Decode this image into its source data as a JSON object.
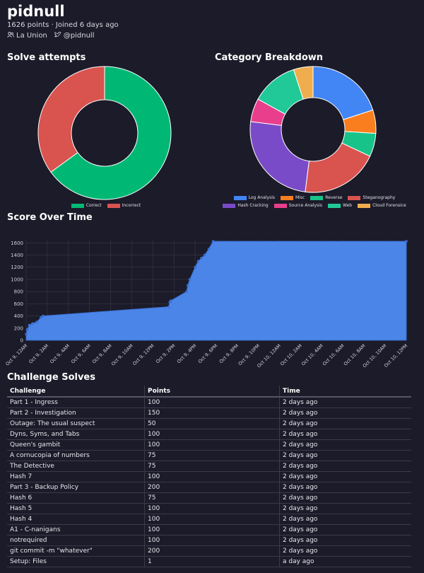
{
  "profile": {
    "username": "pidnull",
    "meta": "1626 points · Joined 6 days ago",
    "team": "La Union",
    "twitter": "@pidnull"
  },
  "sections": {
    "solve_attempts": "Solve attempts",
    "category_breakdown": "Category Breakdown",
    "score_over_time": "Score Over Time",
    "challenge_solves": "Challenge Solves"
  },
  "colors": {
    "correct": "#00b874",
    "incorrect": "#d9534f",
    "area": "#4b85e8"
  },
  "chart_data": [
    {
      "type": "pie",
      "labels": [
        "Correct",
        "Incorrect"
      ],
      "values": [
        65,
        35
      ],
      "colors": [
        "#00b874",
        "#d9534f"
      ],
      "legend": "bottom"
    },
    {
      "type": "pie",
      "labels": [
        "Log Analysis",
        "Misc",
        "Reverse",
        "Steganography",
        "Hash Cracking",
        "Source Analysis",
        "Web",
        "Cloud Forensice"
      ],
      "values": [
        20,
        6,
        6,
        20,
        25,
        6,
        12,
        5
      ],
      "colors": [
        "#4285f4",
        "#fa7e1e",
        "#17c389",
        "#d9534f",
        "#7a4bc8",
        "#e83e8c",
        "#20c997",
        "#f0ad4e"
      ],
      "legend": "bottom"
    },
    {
      "type": "area",
      "ylim": [
        0,
        1650
      ],
      "yticks": [
        0,
        200,
        400,
        600,
        800,
        1000,
        1200,
        1400,
        1600
      ],
      "xticks": [
        "Oct 9, 12AM",
        "Oct 9, 2AM",
        "Oct 9, 4AM",
        "Oct 9, 6AM",
        "Oct 9, 8AM",
        "Oct 9, 10AM",
        "Oct 9, 12PM",
        "Oct 9, 2PM",
        "Oct 9, 4PM",
        "Oct 9, 6PM",
        "Oct 9, 8PM",
        "Oct 9, 10PM",
        "Oct 10, 12AM",
        "Oct 10, 2AM",
        "Oct 10, 4AM",
        "Oct 10, 6AM",
        "Oct 10, 8AM",
        "Oct 10, 10AM",
        "Oct 10, 12PM"
      ],
      "x_hours": [
        0,
        0.1,
        0.3,
        0.6,
        1.0,
        1.4,
        1.6,
        13.5,
        13.6,
        13.7,
        15.2,
        15.3,
        15.5,
        16.0,
        16.3,
        16.6,
        16.9,
        17.3,
        17.7,
        36
      ],
      "y": [
        100,
        175,
        250,
        275,
        300,
        375,
        400,
        550,
        625,
        650,
        800,
        900,
        1000,
        1200,
        1300,
        1350,
        1400,
        1500,
        1626,
        1626
      ],
      "grid": true,
      "legend": "none"
    }
  ],
  "table": {
    "headers": [
      "Challenge",
      "Points",
      "Time"
    ],
    "rows": [
      [
        "Part 1 - Ingress",
        "100",
        "2 days ago"
      ],
      [
        "Part 2 - Investigation",
        "150",
        "2 days ago"
      ],
      [
        "Outage: The usual suspect",
        "50",
        "2 days ago"
      ],
      [
        "Dyns, Syms, and Tabs",
        "100",
        "2 days ago"
      ],
      [
        "Queen's gambit",
        "100",
        "2 days ago"
      ],
      [
        "A cornucopia of numbers",
        "75",
        "2 days ago"
      ],
      [
        "The Detective",
        "75",
        "2 days ago"
      ],
      [
        "Hash 7",
        "100",
        "2 days ago"
      ],
      [
        "Part 3 - Backup Policy",
        "200",
        "2 days ago"
      ],
      [
        "Hash 6",
        "75",
        "2 days ago"
      ],
      [
        "Hash 5",
        "100",
        "2 days ago"
      ],
      [
        "Hash 4",
        "100",
        "2 days ago"
      ],
      [
        "A1 - C-nanigans",
        "100",
        "2 days ago"
      ],
      [
        "notrequired",
        "100",
        "2 days ago"
      ],
      [
        "git commit -m \"whatever\"",
        "200",
        "2 days ago"
      ],
      [
        "Setup: Files",
        "1",
        "a day ago"
      ]
    ]
  }
}
